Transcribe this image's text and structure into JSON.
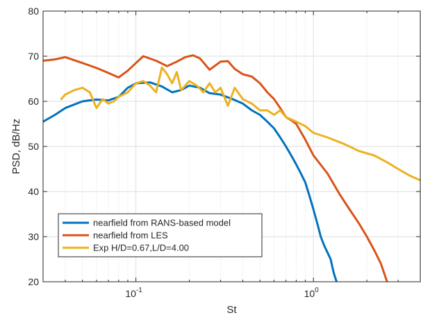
{
  "chart_data": {
    "type": "line",
    "title": "",
    "xlabel": "St",
    "ylabel": "PSD, dB/Hz",
    "xscale": "log",
    "xlim": [
      0.03,
      4.0
    ],
    "ylim": [
      20,
      80
    ],
    "grid": true,
    "legend_position": "bottom-left",
    "x_tick_labels": [
      {
        "value": 0.1,
        "base": "10",
        "exp": "-1"
      },
      {
        "value": 1.0,
        "base": "10",
        "exp": "0"
      }
    ],
    "y_ticks": [
      20,
      30,
      40,
      50,
      60,
      70,
      80
    ],
    "series": [
      {
        "name": "nearfield from RANS-based model",
        "color": "#0072BD",
        "x": [
          0.03,
          0.035,
          0.04,
          0.05,
          0.06,
          0.07,
          0.08,
          0.09,
          0.1,
          0.12,
          0.14,
          0.16,
          0.18,
          0.2,
          0.23,
          0.26,
          0.3,
          0.35,
          0.4,
          0.45,
          0.5,
          0.55,
          0.6,
          0.65,
          0.7,
          0.75,
          0.8,
          0.85,
          0.9,
          0.95,
          1.0,
          1.05,
          1.1,
          1.15,
          1.2,
          1.25,
          1.3,
          1.35
        ],
        "y": [
          55.5,
          57.0,
          58.5,
          60.0,
          60.4,
          60.2,
          61.0,
          63.0,
          64.0,
          64.2,
          63.3,
          62.0,
          62.5,
          63.5,
          63.0,
          61.8,
          61.5,
          60.5,
          59.5,
          58.0,
          57.0,
          55.5,
          54.0,
          52.0,
          50.0,
          48.0,
          46.0,
          44.0,
          42.0,
          39.0,
          36.0,
          33.0,
          30.0,
          28.0,
          26.5,
          25.0,
          22.0,
          20.0
        ]
      },
      {
        "name": "nearfield from LES",
        "color": "#D95319",
        "x": [
          0.03,
          0.035,
          0.04,
          0.05,
          0.06,
          0.07,
          0.08,
          0.09,
          0.1,
          0.11,
          0.13,
          0.15,
          0.17,
          0.19,
          0.21,
          0.23,
          0.26,
          0.3,
          0.33,
          0.36,
          0.4,
          0.45,
          0.5,
          0.55,
          0.6,
          0.65,
          0.7,
          0.75,
          0.8,
          0.9,
          1.0,
          1.2,
          1.4,
          1.6,
          1.8,
          2.0,
          2.2,
          2.4,
          2.6
        ],
        "y": [
          69.0,
          69.3,
          69.8,
          68.5,
          67.4,
          66.3,
          65.3,
          66.8,
          68.5,
          70.0,
          69.0,
          67.8,
          68.8,
          69.8,
          70.2,
          69.5,
          67.0,
          68.8,
          68.9,
          67.2,
          66.0,
          65.5,
          64.0,
          62.0,
          60.5,
          58.5,
          56.5,
          55.8,
          55.0,
          51.5,
          48.0,
          44.0,
          39.5,
          36.0,
          33.0,
          30.0,
          27.0,
          24.0,
          20.0
        ]
      },
      {
        "name": "Exp H/D=0.67,L/D=4.00",
        "color": "#EDB120",
        "x": [
          0.038,
          0.04,
          0.045,
          0.05,
          0.055,
          0.06,
          0.065,
          0.07,
          0.075,
          0.08,
          0.09,
          0.1,
          0.11,
          0.12,
          0.13,
          0.14,
          0.15,
          0.16,
          0.17,
          0.18,
          0.2,
          0.22,
          0.24,
          0.26,
          0.28,
          0.3,
          0.33,
          0.36,
          0.4,
          0.45,
          0.5,
          0.55,
          0.6,
          0.65,
          0.7,
          0.8,
          0.9,
          1.0,
          1.2,
          1.5,
          1.8,
          2.2,
          2.6,
          3.0,
          3.5,
          4.0
        ],
        "y": [
          60.5,
          61.5,
          62.5,
          63.0,
          62.0,
          58.5,
          60.5,
          59.5,
          60.0,
          61.0,
          62.0,
          64.0,
          64.5,
          63.5,
          62.0,
          67.5,
          66.0,
          64.0,
          66.5,
          62.5,
          64.5,
          63.5,
          62.0,
          64.0,
          62.0,
          63.0,
          59.0,
          63.0,
          60.5,
          59.5,
          58.0,
          58.0,
          57.0,
          58.0,
          56.5,
          55.5,
          54.5,
          53.0,
          52.0,
          50.5,
          49.0,
          48.0,
          46.5,
          45.0,
          43.5,
          42.5
        ]
      }
    ]
  }
}
